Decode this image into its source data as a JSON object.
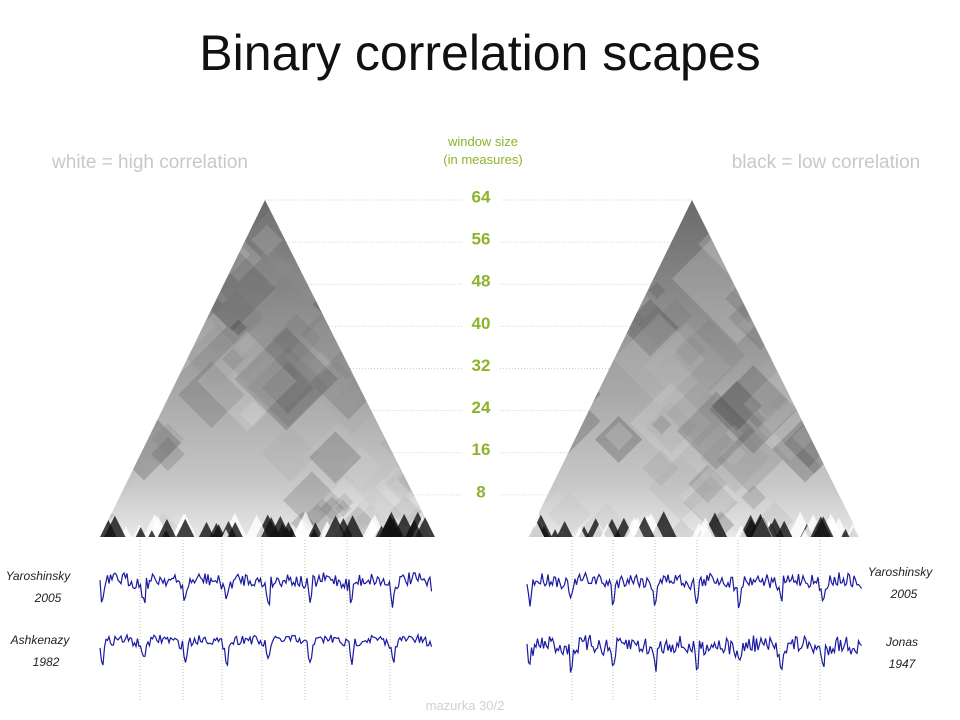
{
  "title": "Binary correlation scapes",
  "legend": {
    "left": "white = high correlation",
    "right": "black = low correlation"
  },
  "axis": {
    "label_line1": "window size",
    "label_line2": "(in measures)",
    "ticks": [
      64,
      56,
      48,
      40,
      32,
      24,
      16,
      8
    ]
  },
  "left_panel": {
    "performances": [
      {
        "name": "Yaroshinsky",
        "year": "2005"
      },
      {
        "name": "Ashkenazy",
        "year": "1982"
      }
    ]
  },
  "right_panel": {
    "performances": [
      {
        "name": "Yaroshinsky",
        "year": "2005"
      },
      {
        "name": "Jonas",
        "year": "1947"
      }
    ]
  },
  "footer": "mazurka 30/2"
}
